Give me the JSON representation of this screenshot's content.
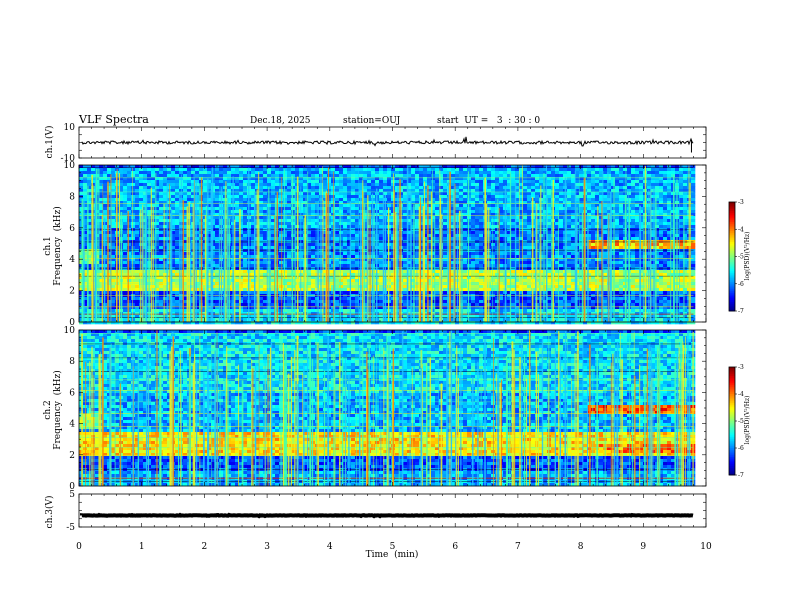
{
  "header": {
    "title": "VLF Spectra",
    "date": "Dec.18, 2025",
    "station": "station=OUJ",
    "start": "start  UT =   3  : 30 : 0"
  },
  "chart_data": [
    {
      "type": "line",
      "name": "ch1-waveform",
      "ylabel": "ch.1(V)",
      "ylim": [
        -10,
        10
      ],
      "yticks": [
        "10",
        "-10"
      ],
      "level": 0
    },
    {
      "type": "heatmap",
      "name": "ch1-spectrogram",
      "ylabel_line1": "ch.1",
      "ylabel_line2": "Frequency  (kHz)",
      "ylim": [
        0,
        10
      ],
      "yticks": [
        "0",
        "2",
        "4",
        "6",
        "8",
        "10"
      ],
      "bands": [
        {
          "f0": 0.0,
          "f1": 1.0,
          "level": 0.35
        },
        {
          "f0": 1.0,
          "f1": 2.0,
          "level": 0.2
        },
        {
          "f0": 2.0,
          "f1": 3.5,
          "level": 0.55
        },
        {
          "f0": 3.5,
          "f1": 6.0,
          "level": 0.25
        },
        {
          "f0": 6.0,
          "f1": 10.0,
          "level": 0.3
        }
      ],
      "emission": {
        "t0": 8.1,
        "t1": 9.8,
        "f": 5.0,
        "level": 0.7
      },
      "colorbar": {
        "label": "log(PSD)(V²/Hz)",
        "ticks": [
          "-3",
          "-4",
          "-5",
          "-6",
          "-7"
        ],
        "range": [
          -7,
          -3
        ]
      }
    },
    {
      "type": "heatmap",
      "name": "ch2-spectrogram",
      "ylabel_line1": "ch.2",
      "ylabel_line2": "Frequency  (kHz)",
      "ylim": [
        0,
        10
      ],
      "yticks": [
        "0",
        "2",
        "4",
        "6",
        "8",
        "10"
      ],
      "bands": [
        {
          "f0": 0.0,
          "f1": 1.0,
          "level": 0.3
        },
        {
          "f0": 1.0,
          "f1": 2.0,
          "level": 0.2
        },
        {
          "f0": 2.0,
          "f1": 3.6,
          "level": 0.65
        },
        {
          "f0": 3.6,
          "f1": 6.0,
          "level": 0.3
        },
        {
          "f0": 6.0,
          "f1": 10.0,
          "level": 0.35
        }
      ],
      "emission": {
        "t0": 8.1,
        "t1": 9.8,
        "f": 5.0,
        "level": 0.8
      },
      "emission2": {
        "t0": 8.1,
        "t1": 9.8,
        "f": 2.5,
        "level": 0.75
      },
      "colorbar": {
        "label": "log(PSD)(V²/Hz)",
        "ticks": [
          "-3",
          "-4",
          "-5",
          "-6",
          "-7"
        ],
        "range": [
          -7,
          -3
        ]
      }
    },
    {
      "type": "line",
      "name": "ch3-waveform",
      "ylabel": "ch.3(V)",
      "ylim": [
        -5,
        5
      ],
      "yticks": [
        "5",
        "-5"
      ],
      "level": -1.5
    }
  ],
  "xaxis": {
    "label": "Time  (min)",
    "range": [
      0,
      10
    ],
    "ticks": [
      "0",
      "1",
      "2",
      "3",
      "4",
      "5",
      "6",
      "7",
      "8",
      "9",
      "10"
    ],
    "data_end": 9.8
  },
  "colors": {
    "jet_low": "#00007f",
    "jet_high": "#7f0000"
  }
}
